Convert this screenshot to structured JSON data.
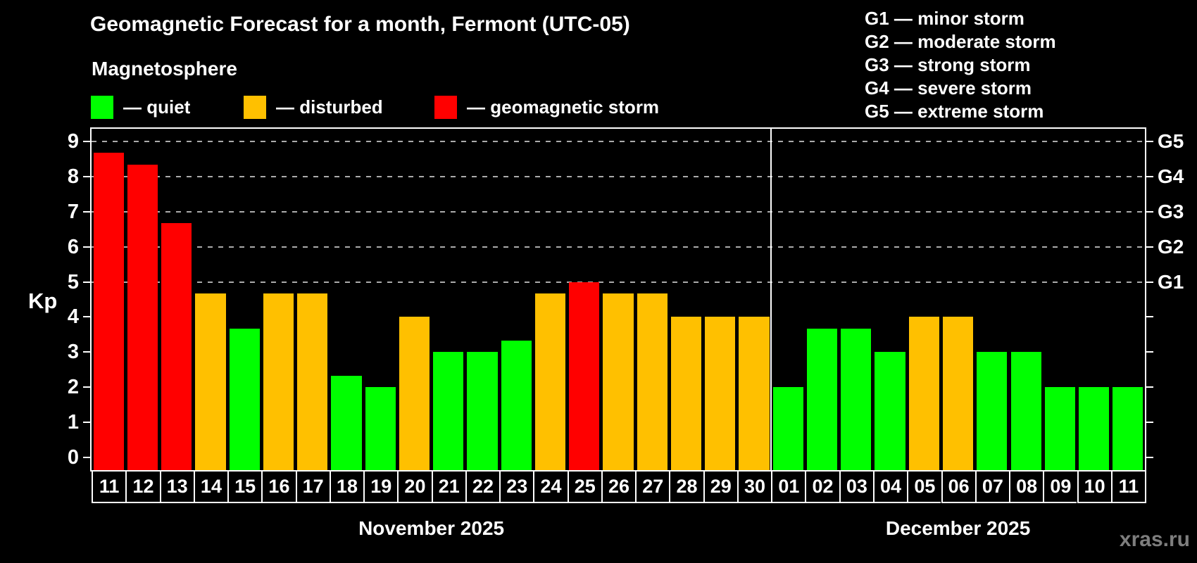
{
  "title": "Geomagnetic Forecast for a month, Fermont (UTC-05)",
  "subtitle": "Magnetosphere",
  "legend": {
    "items": [
      {
        "key": "quiet",
        "label": "— quiet",
        "color": "#00ff00"
      },
      {
        "key": "disturbed",
        "label": "— disturbed",
        "color": "#ffc000"
      },
      {
        "key": "storm",
        "label": "— geomagnetic storm",
        "color": "#ff0000"
      }
    ]
  },
  "storm_scale": [
    "G1 — minor storm",
    "G2 — moderate storm",
    "G3 — strong storm",
    "G4 — severe storm",
    "G5 — extreme storm"
  ],
  "watermark": "xras.ru",
  "chart_data": {
    "type": "bar",
    "ylabel": "Kp",
    "ylim": [
      0,
      9
    ],
    "yticks": [
      0,
      1,
      2,
      3,
      4,
      5,
      6,
      7,
      8,
      9
    ],
    "gridlines_at": [
      5,
      6,
      7,
      8,
      9
    ],
    "grid_style": "dashed horizontal lines only at Kp 5-9 (G1-G5 levels)",
    "legend_position": "top-left",
    "right_axis": [
      {
        "label": "G5",
        "kp": 9
      },
      {
        "label": "G4",
        "kp": 8
      },
      {
        "label": "G3",
        "kp": 7
      },
      {
        "label": "G2",
        "kp": 6
      },
      {
        "label": "G1",
        "kp": 5
      }
    ],
    "status_colors": {
      "quiet": "#00ff00",
      "disturbed": "#ffc000",
      "storm": "#ff0000"
    },
    "months": [
      {
        "label": "November 2025",
        "days": [
          {
            "day": "11",
            "kp": 8.67,
            "status": "storm"
          },
          {
            "day": "12",
            "kp": 8.33,
            "status": "storm"
          },
          {
            "day": "13",
            "kp": 6.67,
            "status": "storm"
          },
          {
            "day": "14",
            "kp": 4.67,
            "status": "disturbed"
          },
          {
            "day": "15",
            "kp": 3.67,
            "status": "quiet"
          },
          {
            "day": "16",
            "kp": 4.67,
            "status": "disturbed"
          },
          {
            "day": "17",
            "kp": 4.67,
            "status": "disturbed"
          },
          {
            "day": "18",
            "kp": 2.33,
            "status": "quiet"
          },
          {
            "day": "19",
            "kp": 2.0,
            "status": "quiet"
          },
          {
            "day": "20",
            "kp": 4.0,
            "status": "disturbed"
          },
          {
            "day": "21",
            "kp": 3.0,
            "status": "quiet"
          },
          {
            "day": "22",
            "kp": 3.0,
            "status": "quiet"
          },
          {
            "day": "23",
            "kp": 3.33,
            "status": "quiet"
          },
          {
            "day": "24",
            "kp": 4.67,
            "status": "disturbed"
          },
          {
            "day": "25",
            "kp": 5.0,
            "status": "storm"
          },
          {
            "day": "26",
            "kp": 4.67,
            "status": "disturbed"
          },
          {
            "day": "27",
            "kp": 4.67,
            "status": "disturbed"
          },
          {
            "day": "28",
            "kp": 4.0,
            "status": "disturbed"
          },
          {
            "day": "29",
            "kp": 4.0,
            "status": "disturbed"
          },
          {
            "day": "30",
            "kp": 4.0,
            "status": "disturbed"
          }
        ]
      },
      {
        "label": "December 2025",
        "days": [
          {
            "day": "01",
            "kp": 2.0,
            "status": "quiet"
          },
          {
            "day": "02",
            "kp": 3.67,
            "status": "quiet"
          },
          {
            "day": "03",
            "kp": 3.67,
            "status": "quiet"
          },
          {
            "day": "04",
            "kp": 3.0,
            "status": "quiet"
          },
          {
            "day": "05",
            "kp": 4.0,
            "status": "disturbed"
          },
          {
            "day": "06",
            "kp": 4.0,
            "status": "disturbed"
          },
          {
            "day": "07",
            "kp": 3.0,
            "status": "quiet"
          },
          {
            "day": "08",
            "kp": 3.0,
            "status": "quiet"
          },
          {
            "day": "09",
            "kp": 2.0,
            "status": "quiet"
          },
          {
            "day": "10",
            "kp": 2.0,
            "status": "quiet"
          },
          {
            "day": "11",
            "kp": 2.0,
            "status": "quiet"
          }
        ]
      }
    ]
  }
}
